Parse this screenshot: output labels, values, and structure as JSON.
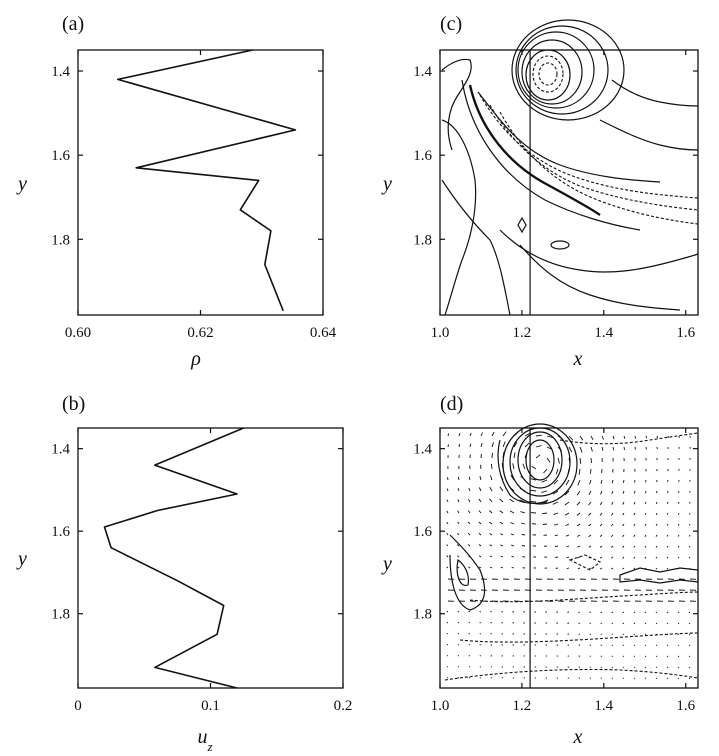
{
  "panels": {
    "a": {
      "label": "(a)"
    },
    "b": {
      "label": "(b)"
    },
    "c": {
      "label": "(c)"
    },
    "d": {
      "label": "(d)"
    }
  },
  "chart_data": [
    {
      "id": "a",
      "type": "line",
      "panel_label": "(a)",
      "xlabel": "ρ",
      "ylabel": "y",
      "xlim": [
        0.6,
        0.64
      ],
      "ylim": [
        1.35,
        1.98
      ],
      "y_inverted": true,
      "x_ticks": [
        "0.60",
        "0.62",
        "0.64"
      ],
      "x_tick_values": [
        0.6,
        0.62,
        0.64
      ],
      "y_ticks": [
        "1.4",
        "1.6",
        "1.8"
      ],
      "y_tick_values": [
        1.4,
        1.6,
        1.8
      ],
      "series": [
        {
          "x": [
            0.6285,
            0.6065,
            0.6355,
            0.6095,
            0.6295,
            0.6265,
            0.6315,
            0.6305,
            0.6335
          ],
          "y": [
            1.35,
            1.42,
            1.54,
            1.63,
            1.66,
            1.73,
            1.78,
            1.86,
            1.97
          ]
        }
      ]
    },
    {
      "id": "b",
      "type": "line",
      "panel_label": "(b)",
      "xlabel": "u_z",
      "ylabel": "y",
      "xlim": [
        0,
        0.2
      ],
      "ylim": [
        1.35,
        1.98
      ],
      "y_inverted": true,
      "x_ticks": [
        "0",
        "0.1",
        "0.2"
      ],
      "x_tick_values": [
        0,
        0.1,
        0.2
      ],
      "y_ticks": [
        "1.4",
        "1.6",
        "1.8"
      ],
      "y_tick_values": [
        1.4,
        1.6,
        1.8
      ],
      "series": [
        {
          "x": [
            0.125,
            0.058,
            0.12,
            0.06,
            0.02,
            0.025,
            0.075,
            0.11,
            0.105,
            0.058,
            0.12
          ],
          "y": [
            1.35,
            1.44,
            1.51,
            1.55,
            1.59,
            1.64,
            1.72,
            1.78,
            1.85,
            1.93,
            1.98
          ]
        }
      ]
    },
    {
      "id": "c",
      "type": "contour",
      "panel_label": "(c)",
      "xlabel": "x",
      "ylabel": "y",
      "xlim": [
        1.0,
        1.63
      ],
      "ylim": [
        1.35,
        1.98
      ],
      "y_inverted": true,
      "x_ticks": [
        "1.0",
        "1.2",
        "1.4",
        "1.6"
      ],
      "x_tick_values": [
        1.0,
        1.2,
        1.4,
        1.6
      ],
      "y_ticks": [
        "1.4",
        "1.6",
        "1.8"
      ],
      "y_tick_values": [
        1.4,
        1.6,
        1.8
      ],
      "vertical_line_x": 1.22
    },
    {
      "id": "d",
      "type": "contour",
      "panel_label": "(d)",
      "xlabel": "x",
      "ylabel": "y",
      "xlim": [
        1.0,
        1.63
      ],
      "ylim": [
        1.35,
        1.98
      ],
      "y_inverted": true,
      "x_ticks": [
        "1.0",
        "1.2",
        "1.4",
        "1.6"
      ],
      "x_tick_values": [
        1.0,
        1.2,
        1.4,
        1.6
      ],
      "y_ticks": [
        "1.4",
        "1.6",
        "1.8"
      ],
      "y_tick_values": [
        1.4,
        1.6,
        1.8
      ],
      "vertical_line_x": 1.22,
      "vector_field": true
    }
  ]
}
